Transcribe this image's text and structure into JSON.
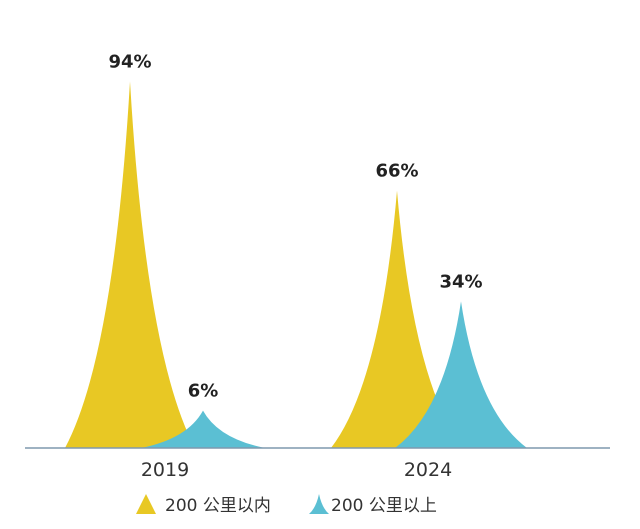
{
  "chart_data": {
    "type": "bar",
    "categories": [
      "2019",
      "2024"
    ],
    "series": [
      {
        "name": "200 公里以内",
        "values": [
          94,
          66
        ],
        "labels": [
          "94%",
          "66%"
        ],
        "color": "#E8C824"
      },
      {
        "name": "200 公里以上",
        "values": [
          6,
          34
        ],
        "labels": [
          "6%",
          "34%"
        ],
        "color": "#5BBFD3"
      }
    ],
    "unit": "%",
    "ylim": [
      0,
      100
    ],
    "grid": false,
    "legend": "bottom",
    "bar_shape": "spike"
  }
}
